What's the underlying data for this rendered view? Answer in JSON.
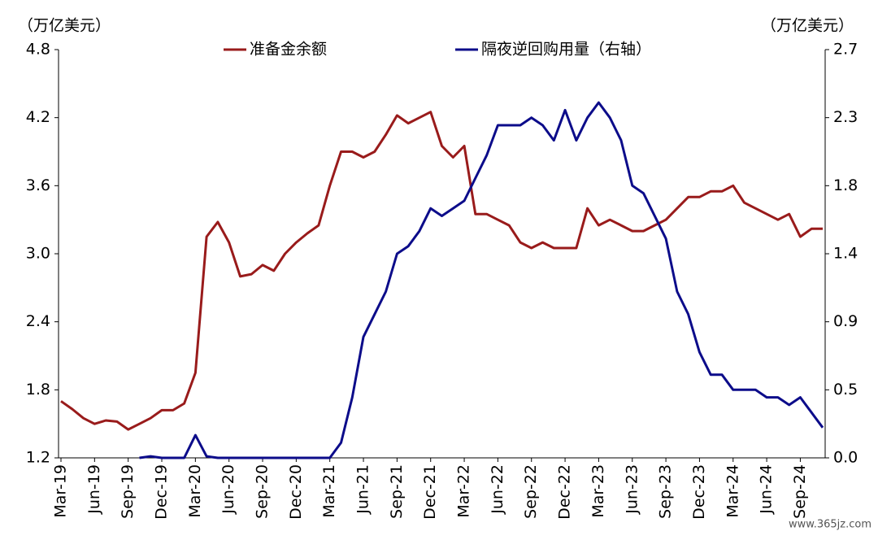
{
  "chart_data": {
    "type": "line",
    "y_label": "（万亿美元）",
    "y2_label": "（万亿美元）",
    "watermark": "www.365jz.com",
    "x": [
      "2019-03",
      "2019-04",
      "2019-05",
      "2019-06",
      "2019-07",
      "2019-08",
      "2019-09",
      "2019-10",
      "2019-11",
      "2019-12",
      "2020-01",
      "2020-02",
      "2020-03",
      "2020-04",
      "2020-05",
      "2020-06",
      "2020-07",
      "2020-08",
      "2020-09",
      "2020-10",
      "2020-11",
      "2020-12",
      "2021-01",
      "2021-02",
      "2021-03",
      "2021-04",
      "2021-05",
      "2021-06",
      "2021-07",
      "2021-08",
      "2021-09",
      "2021-10",
      "2021-11",
      "2021-12",
      "2022-01",
      "2022-02",
      "2022-03",
      "2022-04",
      "2022-05",
      "2022-06",
      "2022-07",
      "2022-08",
      "2022-09",
      "2022-10",
      "2022-11",
      "2022-12",
      "2023-01",
      "2023-02",
      "2023-03",
      "2023-04",
      "2023-05",
      "2023-06",
      "2023-07",
      "2023-08",
      "2023-09",
      "2023-10",
      "2023-11",
      "2023-12",
      "2024-01",
      "2024-02",
      "2024-03",
      "2024-04",
      "2024-05",
      "2024-06",
      "2024-07",
      "2024-08",
      "2024-09",
      "2024-10",
      "2024-11"
    ],
    "series": [
      {
        "name": "准备金余额",
        "color": "#991b1b",
        "axis": "y",
        "values": [
          1.7,
          1.63,
          1.55,
          1.5,
          1.53,
          1.52,
          1.45,
          1.5,
          1.55,
          1.62,
          1.62,
          1.68,
          1.95,
          3.15,
          3.28,
          3.1,
          2.8,
          2.82,
          2.9,
          2.85,
          3.0,
          3.1,
          3.18,
          3.25,
          3.6,
          3.9,
          3.9,
          3.85,
          3.9,
          4.05,
          4.22,
          4.15,
          4.2,
          4.25,
          3.95,
          3.85,
          3.95,
          3.35,
          3.35,
          3.3,
          3.25,
          3.1,
          3.05,
          3.1,
          3.05,
          3.05,
          3.05,
          3.4,
          3.25,
          3.3,
          3.25,
          3.2,
          3.2,
          3.25,
          3.3,
          3.4,
          3.5,
          3.5,
          3.55,
          3.55,
          3.6,
          3.45,
          3.4,
          3.35,
          3.3,
          3.35,
          3.15,
          3.22,
          3.22
        ]
      },
      {
        "name": "隔夜逆回购用量（右轴）",
        "color": "#0c0c8a",
        "axis": "y2",
        "values": [
          null,
          null,
          null,
          null,
          null,
          null,
          null,
          0.0,
          0.01,
          0.0,
          0.0,
          0.0,
          0.15,
          0.01,
          0.0,
          0.0,
          0.0,
          0.0,
          0.0,
          0.0,
          0.0,
          0.0,
          0.0,
          0.0,
          0.0,
          0.1,
          0.4,
          0.8,
          0.95,
          1.1,
          1.35,
          1.4,
          1.5,
          1.65,
          1.6,
          1.65,
          1.7,
          1.85,
          2.0,
          2.2,
          2.2,
          2.2,
          2.25,
          2.2,
          2.1,
          2.3,
          2.1,
          2.25,
          2.35,
          2.25,
          2.1,
          1.8,
          1.75,
          1.6,
          1.45,
          1.1,
          0.95,
          0.7,
          0.55,
          0.55,
          0.45,
          0.45,
          0.45,
          0.4,
          0.4,
          0.35,
          0.4,
          0.3,
          0.2
        ]
      }
    ],
    "xlim": [
      "2019-03",
      "2024-11"
    ],
    "xticks": [
      {
        "value": "2019-03",
        "label": "Mar-19"
      },
      {
        "value": "2019-06",
        "label": "Jun-19"
      },
      {
        "value": "2019-09",
        "label": "Sep-19"
      },
      {
        "value": "2019-12",
        "label": "Dec-19"
      },
      {
        "value": "2020-03",
        "label": "Mar-20"
      },
      {
        "value": "2020-06",
        "label": "Jun-20"
      },
      {
        "value": "2020-09",
        "label": "Sep-20"
      },
      {
        "value": "2020-12",
        "label": "Dec-20"
      },
      {
        "value": "2021-03",
        "label": "Mar-21"
      },
      {
        "value": "2021-06",
        "label": "Jun-21"
      },
      {
        "value": "2021-09",
        "label": "Sep-21"
      },
      {
        "value": "2021-12",
        "label": "Dec-21"
      },
      {
        "value": "2022-03",
        "label": "Mar-22"
      },
      {
        "value": "2022-06",
        "label": "Jun-22"
      },
      {
        "value": "2022-09",
        "label": "Sep-22"
      },
      {
        "value": "2022-12",
        "label": "Dec-22"
      },
      {
        "value": "2023-03",
        "label": "Mar-23"
      },
      {
        "value": "2023-06",
        "label": "Jun-23"
      },
      {
        "value": "2023-09",
        "label": "Sep-23"
      },
      {
        "value": "2023-12",
        "label": "Dec-23"
      },
      {
        "value": "2024-03",
        "label": "Mar-24"
      },
      {
        "value": "2024-06",
        "label": "Jun-24"
      },
      {
        "value": "2024-09",
        "label": "Sep-24"
      }
    ],
    "ylim": [
      1.2,
      4.8
    ],
    "yticks": [
      1.2,
      1.8,
      2.4,
      {
        "value": 3,
        "label": "3.0"
      },
      3.6,
      4.2,
      4.8
    ],
    "y2lim": [
      0,
      2.7
    ],
    "y2ticks": [
      {
        "value": 0,
        "label": "0.0"
      },
      {
        "value": 0.45,
        "label": "0.5"
      },
      0.9,
      {
        "value": 1.35,
        "label": "1.4"
      },
      1.8,
      {
        "value": 2.25,
        "label": "2.3"
      },
      2.7
    ],
    "grid": false,
    "legend": "top"
  }
}
